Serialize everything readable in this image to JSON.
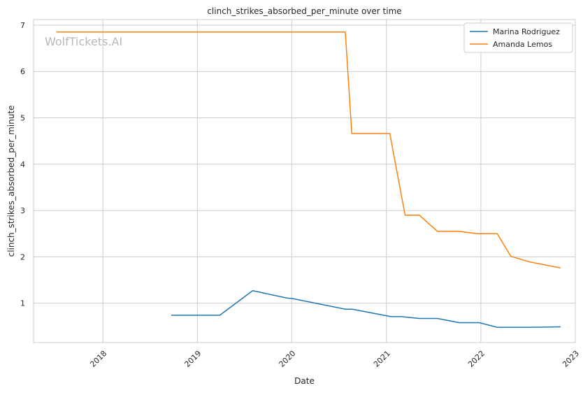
{
  "chart_data": {
    "type": "line",
    "title": "clinch_strikes_absorbed_per_minute over time",
    "xlabel": "Date",
    "ylabel": "clinch_strikes_absorbed_per_minute",
    "watermark": "WolfTickets.AI",
    "x_ticks": [
      "2018",
      "2019",
      "2020",
      "2021",
      "2022",
      "2023"
    ],
    "y_ticks": [
      "1",
      "2",
      "3",
      "4",
      "5",
      "6",
      "7"
    ],
    "xlim": [
      "2017-04-08",
      "2023-01-01"
    ],
    "ylim": [
      0.15,
      7.12
    ],
    "grid": true,
    "legend_position": "top-right",
    "series": [
      {
        "name": "Marina Rodriguez",
        "color": "#1f77b4",
        "points": [
          [
            "2018-09-22",
            0.74
          ],
          [
            "2019-03-29",
            0.74
          ],
          [
            "2019-08-03",
            1.27
          ],
          [
            "2019-12-14",
            1.11
          ],
          [
            "2020-01-03",
            1.1
          ],
          [
            "2020-07-26",
            0.87
          ],
          [
            "2020-08-22",
            0.87
          ],
          [
            "2021-01-18",
            0.71
          ],
          [
            "2021-02-27",
            0.71
          ],
          [
            "2021-05-08",
            0.67
          ],
          [
            "2021-07-17",
            0.67
          ],
          [
            "2021-10-09",
            0.58
          ],
          [
            "2021-12-25",
            0.58
          ],
          [
            "2022-03-05",
            0.48
          ],
          [
            "2022-07-09",
            0.48
          ],
          [
            "2022-11-05",
            0.49
          ]
        ]
      },
      {
        "name": "Amanda Lemos",
        "color": "#ff7f0e",
        "points": [
          [
            "2017-07-05",
            6.85
          ],
          [
            "2020-07-26",
            6.85
          ],
          [
            "2020-08-20",
            4.66
          ],
          [
            "2021-01-14",
            4.66
          ],
          [
            "2021-03-14",
            2.9
          ],
          [
            "2021-05-08",
            2.9
          ],
          [
            "2021-07-17",
            2.55
          ],
          [
            "2021-10-09",
            2.55
          ],
          [
            "2021-12-18",
            2.5
          ],
          [
            "2022-03-05",
            2.5
          ],
          [
            "2022-04-27",
            2.01
          ],
          [
            "2022-07-09",
            1.89
          ],
          [
            "2022-11-05",
            1.76
          ]
        ]
      }
    ]
  }
}
